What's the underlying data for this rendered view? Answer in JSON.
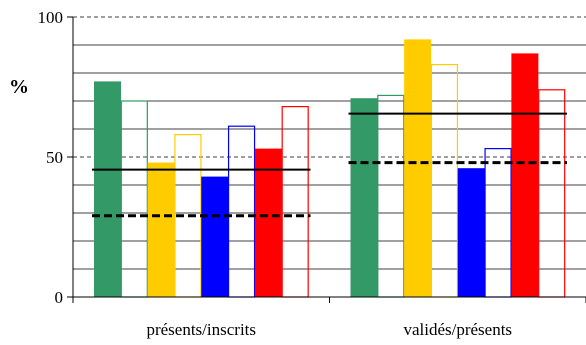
{
  "chart_data": {
    "type": "bar",
    "ylabel": "%",
    "ylim": [
      0,
      100
    ],
    "yticks": [
      0,
      50,
      100
    ],
    "categories": [
      "présents/inscrits",
      "validés/présents"
    ],
    "grid": "horizontal lines every 10; dashed at 50 and 100",
    "series": [
      {
        "values": [
          77,
          71
        ],
        "fill": "filled",
        "color": "#339966"
      },
      {
        "values": [
          70,
          72
        ],
        "fill": "outline",
        "color": "#339966"
      },
      {
        "values": [
          48,
          92
        ],
        "fill": "filled",
        "color": "#FFCC00"
      },
      {
        "values": [
          58,
          83
        ],
        "fill": "outline",
        "color": "#FFCC00"
      },
      {
        "values": [
          43,
          46
        ],
        "fill": "filled",
        "color": "#0000FF"
      },
      {
        "values": [
          61,
          53
        ],
        "fill": "outline",
        "color": "#0000FF"
      },
      {
        "values": [
          53,
          87
        ],
        "fill": "filled",
        "color": "#FF0000"
      },
      {
        "values": [
          68,
          74
        ],
        "fill": "outline",
        "color": "#FF0000"
      }
    ],
    "reference_lines": [
      {
        "style": "solid",
        "values": [
          45.5,
          65.5
        ]
      },
      {
        "style": "dashed",
        "values": [
          29,
          48
        ]
      }
    ]
  }
}
